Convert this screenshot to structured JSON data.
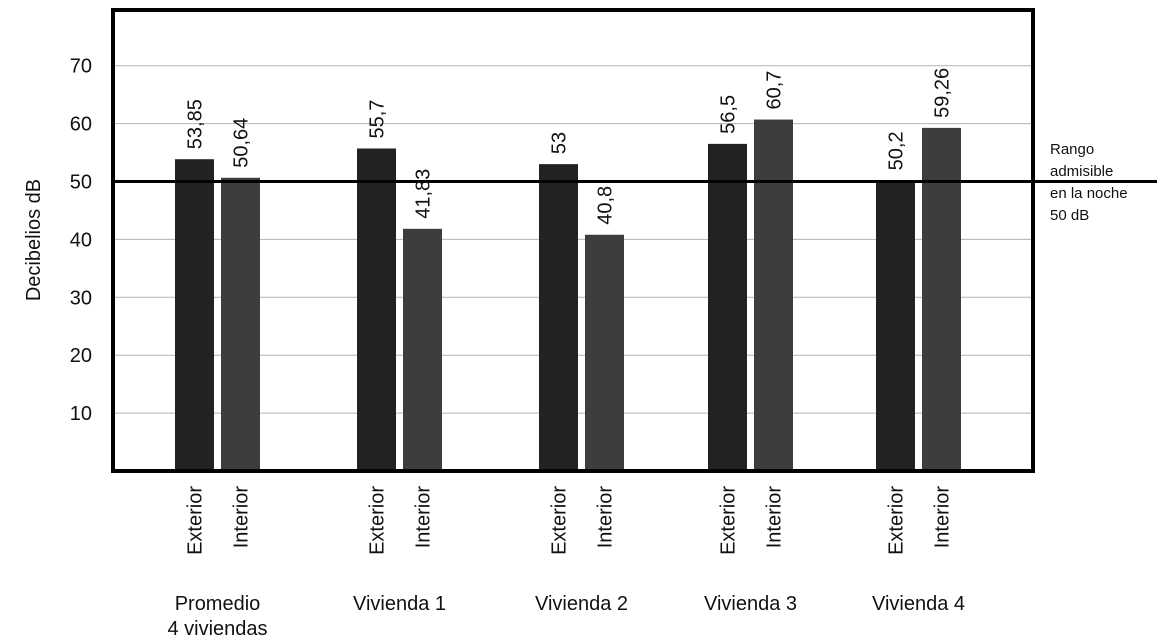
{
  "chart_data": {
    "type": "bar",
    "ylabel": "Decibelios dB",
    "ylim": [
      0,
      80
    ],
    "yticks": [
      10,
      20,
      30,
      40,
      50,
      60,
      70
    ],
    "grid": true,
    "groups": [
      {
        "label_lines": [
          "Promedio",
          "4 viviendas"
        ],
        "bars": [
          {
            "category": "Exterior",
            "value": 53.85,
            "label": "53,85"
          },
          {
            "category": "Interior",
            "value": 50.64,
            "label": "50,64"
          }
        ]
      },
      {
        "label_lines": [
          "Vivienda 1"
        ],
        "bars": [
          {
            "category": "Exterior",
            "value": 55.7,
            "label": "55,7"
          },
          {
            "category": "Interior",
            "value": 41.83,
            "label": "41,83"
          }
        ]
      },
      {
        "label_lines": [
          "Vivienda 2"
        ],
        "bars": [
          {
            "category": "Exterior",
            "value": 53,
            "label": "53"
          },
          {
            "category": "Interior",
            "value": 40.8,
            "label": "40,8"
          }
        ]
      },
      {
        "label_lines": [
          "Vivienda 3"
        ],
        "bars": [
          {
            "category": "Exterior",
            "value": 56.5,
            "label": "56,5"
          },
          {
            "category": "Interior",
            "value": 60.7,
            "label": "60,7"
          }
        ]
      },
      {
        "label_lines": [
          "Vivienda 4"
        ],
        "bars": [
          {
            "category": "Exterior",
            "value": 50.2,
            "label": "50,2"
          },
          {
            "category": "Interior",
            "value": 59.26,
            "label": "59,26"
          }
        ]
      }
    ],
    "reference_line": {
      "value": 50,
      "label_lines": [
        "Rango",
        "admisible",
        "en la noche",
        "50 dB"
      ]
    },
    "colors": {
      "Exterior": "#222222",
      "Interior": "#3d3d3d",
      "grid": "#b3b3b3",
      "frame": "#000000"
    }
  }
}
